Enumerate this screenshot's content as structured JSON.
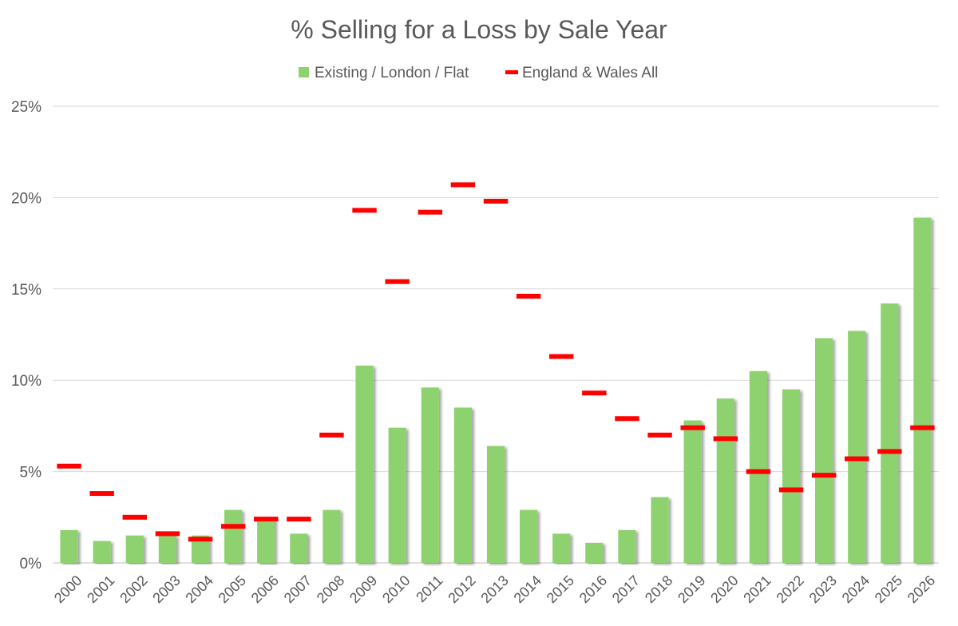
{
  "chart_data": {
    "type": "bar",
    "title": "% Selling for a Loss by Sale Year",
    "xlabel": "",
    "ylabel": "",
    "categories": [
      "2000",
      "2001",
      "2002",
      "2003",
      "2004",
      "2005",
      "2006",
      "2007",
      "2008",
      "2009",
      "2010",
      "2011",
      "2012",
      "2013",
      "2014",
      "2015",
      "2016",
      "2017",
      "2018",
      "2019",
      "2020",
      "2021",
      "2022",
      "2023",
      "2024",
      "2025",
      "2026"
    ],
    "ylim": [
      0,
      0.25
    ],
    "yticks": [
      0,
      0.05,
      0.1,
      0.15,
      0.2,
      0.25
    ],
    "ytick_labels": [
      "0%",
      "5%",
      "10%",
      "15%",
      "20%",
      "25%"
    ],
    "grid": true,
    "legend_position": "top",
    "series": [
      {
        "name": "Existing / London / Flat",
        "kind": "bar",
        "color": "#8ed26f",
        "values": [
          0.018,
          0.012,
          0.015,
          0.015,
          0.015,
          0.029,
          0.025,
          0.016,
          0.029,
          0.108,
          0.074,
          0.096,
          0.085,
          0.064,
          0.029,
          0.016,
          0.011,
          0.018,
          0.036,
          0.078,
          0.09,
          0.105,
          0.095,
          0.123,
          0.127,
          0.142,
          0.189
        ]
      },
      {
        "name": "England & Wales All",
        "kind": "marker",
        "color": "#ff0000",
        "values": [
          0.053,
          0.038,
          0.025,
          0.016,
          0.013,
          0.02,
          0.024,
          0.024,
          0.07,
          0.193,
          0.154,
          0.192,
          0.207,
          0.198,
          0.146,
          0.113,
          0.093,
          0.079,
          0.07,
          0.074,
          0.068,
          0.05,
          0.04,
          0.048,
          0.057,
          0.061,
          0.074
        ]
      }
    ]
  }
}
